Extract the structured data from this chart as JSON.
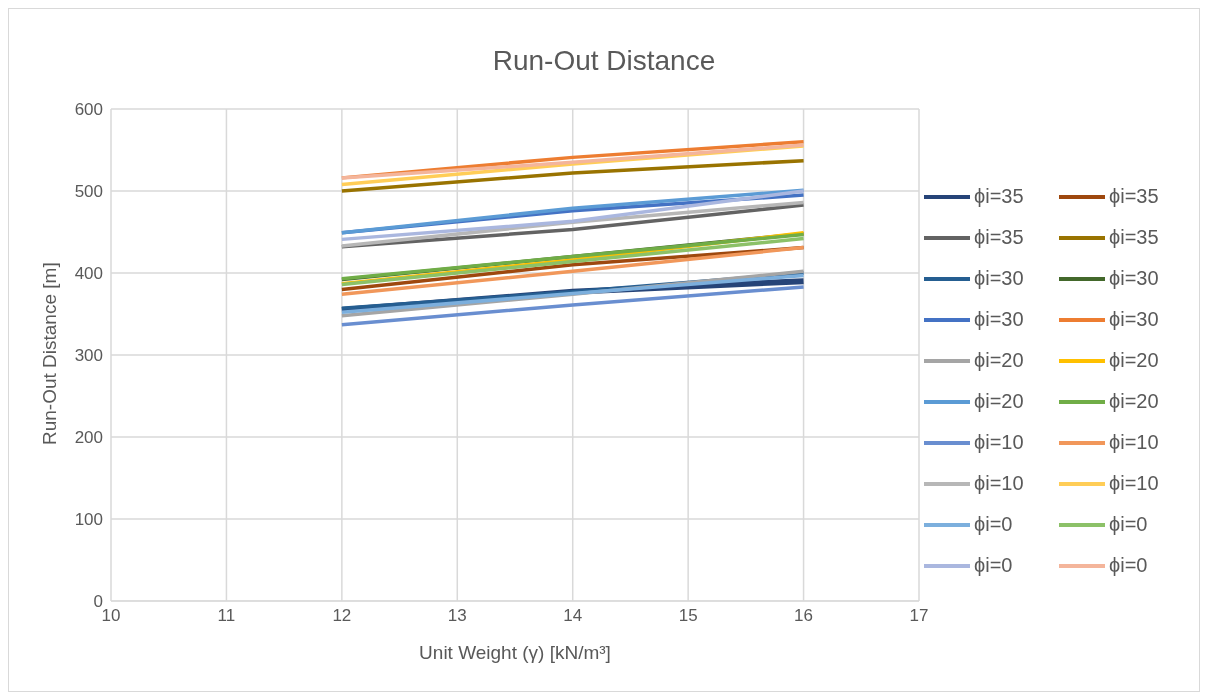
{
  "chart_data": {
    "type": "line",
    "title": "Run-Out Distance",
    "xlabel": "Unit Weight (γ) [kN/m³]",
    "ylabel": "Run-Out Distance [m]",
    "x": [
      12,
      14,
      16
    ],
    "xlim": [
      10,
      17
    ],
    "xticks": [
      10,
      11,
      12,
      13,
      14,
      15,
      16,
      17
    ],
    "ylim": [
      0,
      600
    ],
    "yticks": [
      0,
      100,
      200,
      300,
      400,
      500,
      600
    ],
    "grid": true,
    "legend": "right",
    "marker": "none",
    "line_style": "solid",
    "series": [
      {
        "name": "ϕi=35",
        "color": "#264478",
        "values": [
          355,
          377,
          390
        ]
      },
      {
        "name": "ϕi=35",
        "color": "#9e480e",
        "values": [
          380,
          410,
          431
        ]
      },
      {
        "name": "ϕi=35",
        "color": "#636363",
        "values": [
          432,
          453,
          483
        ]
      },
      {
        "name": "ϕi=35",
        "color": "#997300",
        "values": [
          500,
          522,
          537
        ]
      },
      {
        "name": "ϕi=30",
        "color": "#255e91",
        "values": [
          357,
          377,
          400
        ]
      },
      {
        "name": "ϕi=30",
        "color": "#43682b",
        "values": [
          392,
          420,
          448
        ]
      },
      {
        "name": "ϕi=30",
        "color": "#4472c4",
        "values": [
          449,
          476,
          495
        ]
      },
      {
        "name": "ϕi=30",
        "color": "#ed7d31",
        "values": [
          516,
          541,
          560
        ]
      },
      {
        "name": "ϕi=20",
        "color": "#a5a5a5",
        "values": [
          348,
          374,
          402
        ]
      },
      {
        "name": "ϕi=20",
        "color": "#ffc000",
        "values": [
          387,
          416,
          449
        ]
      },
      {
        "name": "ϕi=20",
        "color": "#5b9bd5",
        "values": [
          449,
          479,
          501
        ]
      },
      {
        "name": "ϕi=20",
        "color": "#70ad47",
        "values": [
          393,
          420,
          447
        ]
      },
      {
        "name": "ϕi=10",
        "color": "#698ed0",
        "values": [
          337,
          361,
          383
        ]
      },
      {
        "name": "ϕi=10",
        "color": "#f1975a",
        "values": [
          374,
          402,
          431
        ]
      },
      {
        "name": "ϕi=10",
        "color": "#b7b7b7",
        "values": [
          433,
          462,
          486
        ]
      },
      {
        "name": "ϕi=10",
        "color": "#ffcd57",
        "values": [
          508,
          533,
          555
        ]
      },
      {
        "name": "ϕi=0",
        "color": "#7cafdd",
        "values": [
          352,
          375,
          397
        ]
      },
      {
        "name": "ϕi=0",
        "color": "#8cc168",
        "values": [
          386,
          414,
          442
        ]
      },
      {
        "name": "ϕi=0",
        "color": "#aab7df",
        "values": [
          441,
          463,
          500
        ]
      },
      {
        "name": "ϕi=0",
        "color": "#f4b59b",
        "values": [
          516,
          535,
          556
        ]
      }
    ]
  }
}
